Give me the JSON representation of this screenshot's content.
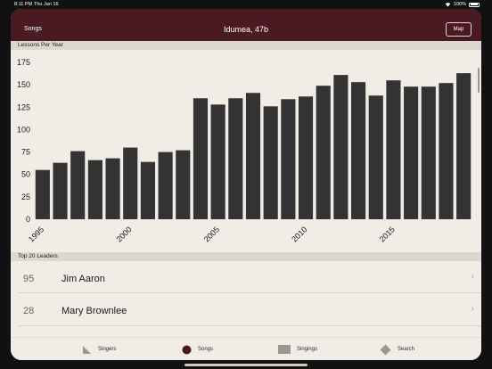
{
  "status_bar": {
    "time": "8:11 PM",
    "date": "Thu Jan 16",
    "battery": "100%"
  },
  "nav": {
    "back_label": "Songs",
    "title": "Idumea, 47b",
    "map_label": "Map"
  },
  "sections": {
    "chart_header": "Lessons Per Year",
    "leaders_header": "Top 20 Leaders"
  },
  "chart_data": {
    "type": "bar",
    "title": "Lessons Per Year",
    "categories": [
      "1995",
      "1996",
      "1997",
      "1998",
      "1999",
      "2000",
      "2001",
      "2002",
      "2003",
      "2004",
      "2005",
      "2006",
      "2007",
      "2008",
      "2009",
      "2010",
      "2011",
      "2012",
      "2013",
      "2014",
      "2015",
      "2016",
      "2017",
      "2018",
      "2019"
    ],
    "values": [
      55,
      63,
      76,
      66,
      68,
      80,
      64,
      75,
      77,
      135,
      128,
      135,
      141,
      126,
      134,
      137,
      149,
      161,
      153,
      138,
      155,
      148,
      148,
      152,
      163
    ],
    "ylim": [
      0,
      185
    ],
    "yticks": [
      0,
      25,
      50,
      75,
      100,
      125,
      150,
      175
    ],
    "xtick_labels": [
      "1995",
      "2000",
      "2005",
      "2010",
      "2015"
    ],
    "bar_color": "#333333",
    "grid": false
  },
  "leaders": [
    {
      "count": "95",
      "name": "Jim Aaron"
    },
    {
      "count": "28",
      "name": "Mary Brownlee"
    }
  ],
  "tabs": [
    {
      "label": "Singers",
      "icon": "triangle-icon"
    },
    {
      "label": "Songs",
      "icon": "circle-icon"
    },
    {
      "label": "Singings",
      "icon": "square-icon"
    },
    {
      "label": "Search",
      "icon": "diamond-icon"
    }
  ],
  "colors": {
    "nav_bg": "#4a1a22",
    "page_bg": "#f1ede6",
    "bar": "#333333",
    "songs_tab_icon": "#4a1a22"
  }
}
